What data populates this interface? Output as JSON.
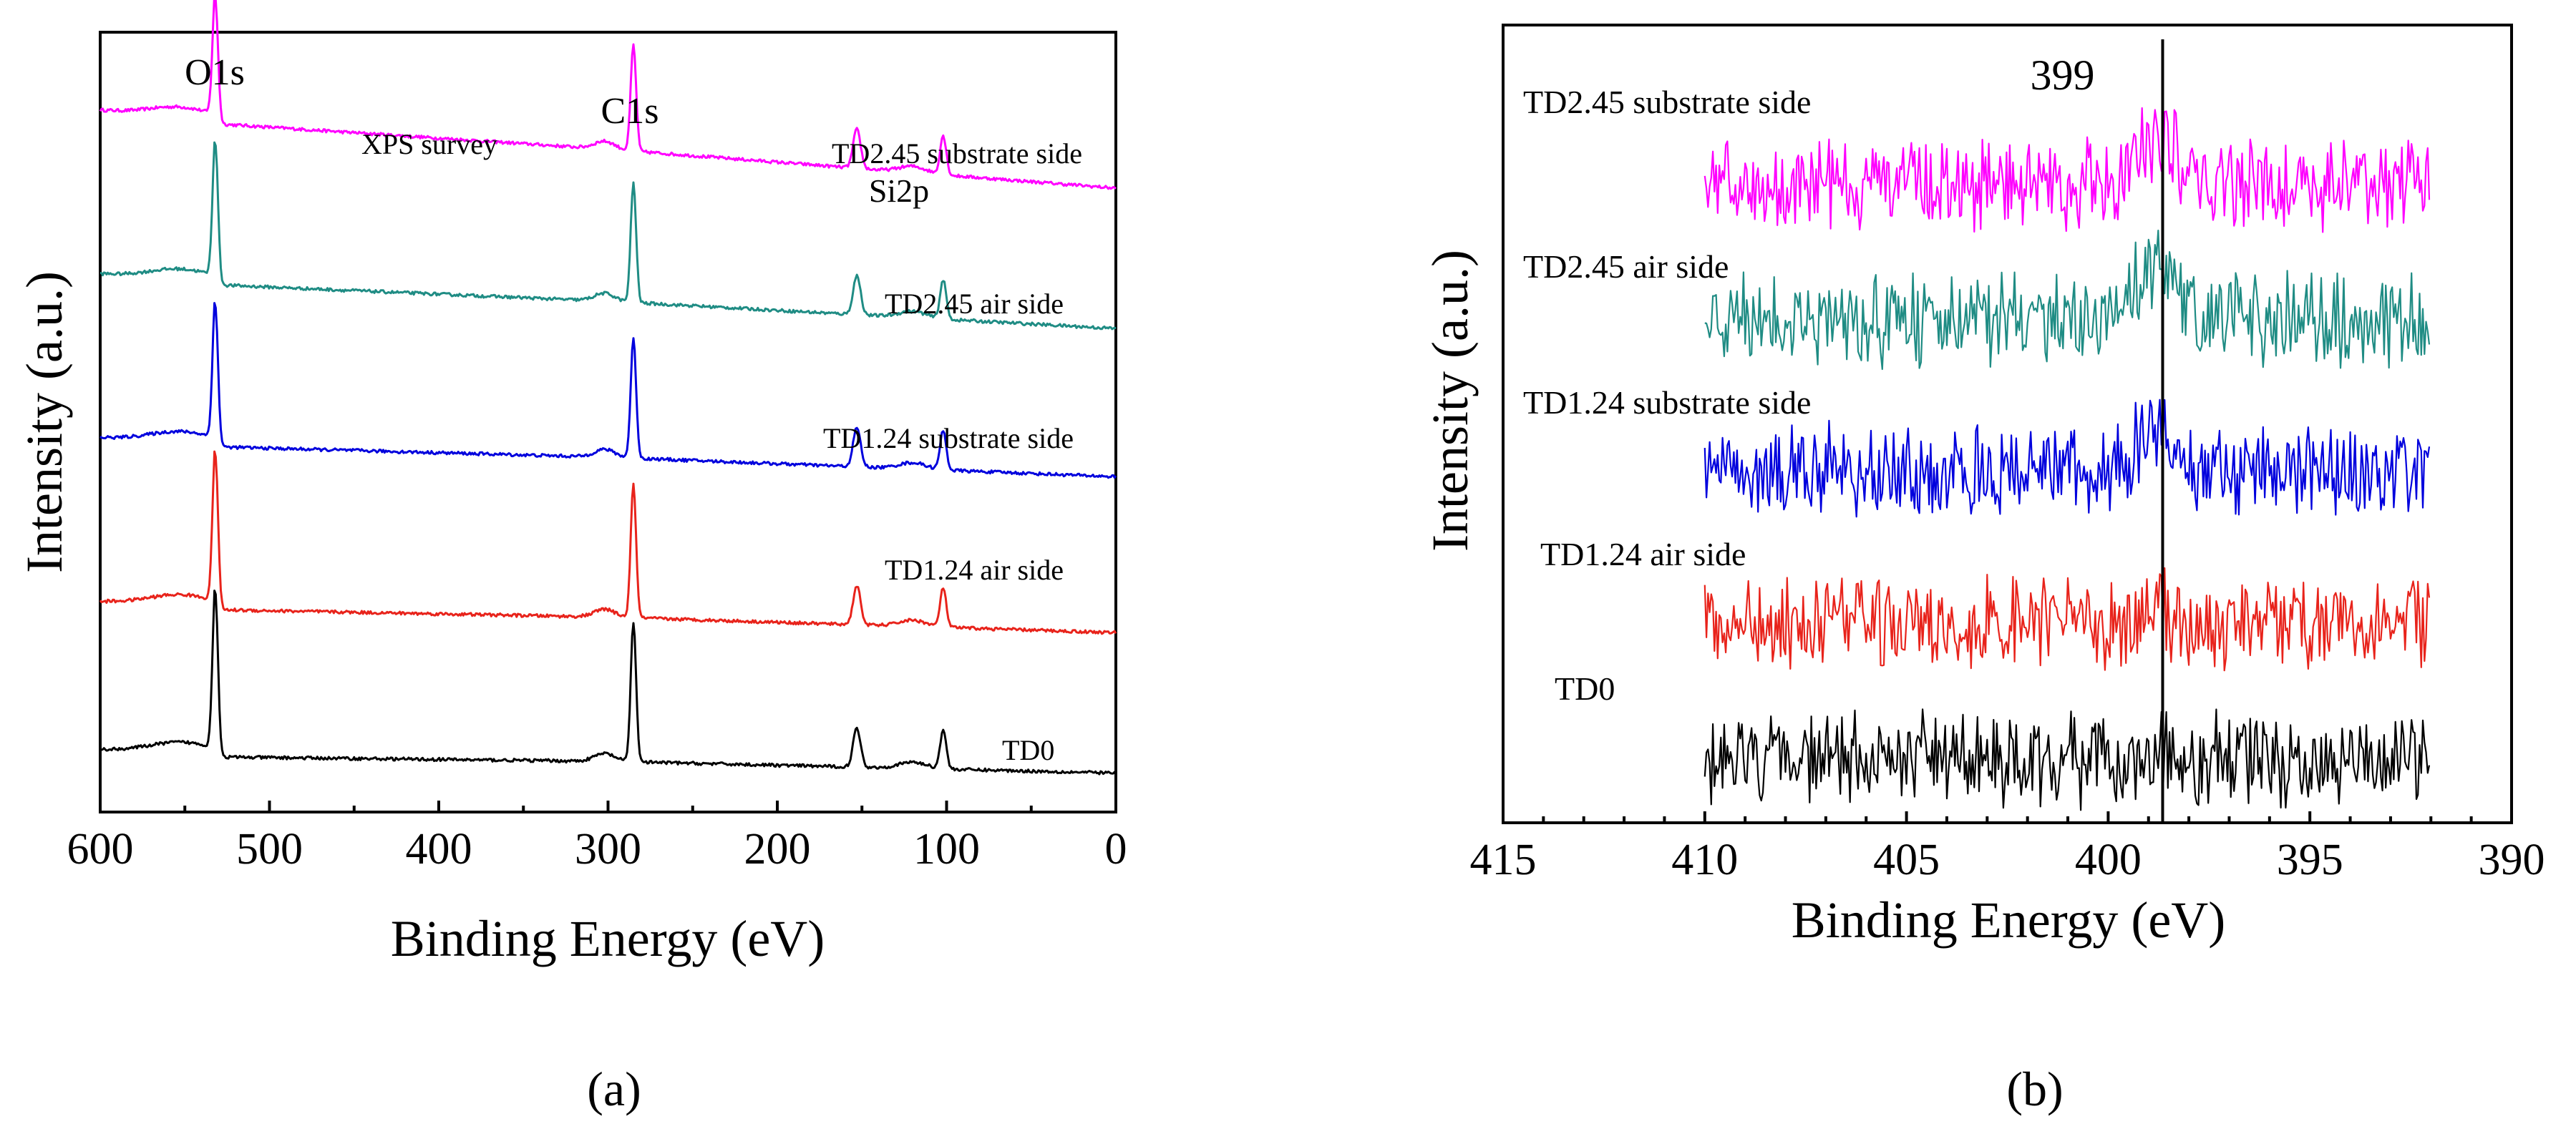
{
  "chart_data": [
    {
      "type": "line",
      "panel": "a",
      "panel_label": "(a)",
      "xlabel": "Binding Energy (eV)",
      "ylabel": "Intensity (a.u.)",
      "xlim": [
        600,
        0
      ],
      "x_ticks": [
        "600",
        "500",
        "400",
        "300",
        "200",
        "100",
        "0"
      ],
      "annotations": [
        "O1s",
        "C1s",
        "Si2p",
        "XPS survey"
      ],
      "peaks_eV": {
        "O1s": 532,
        "C1s": 285,
        "Si2p_shoulder": 153,
        "Si2p": 102
      },
      "series": [
        {
          "name": "TD2.45 substrate side",
          "color": "#ff00ff",
          "baseline_high": 0.9,
          "baseline_low": 0.8
        },
        {
          "name": "TD2.45  air side",
          "color": "#1f8c84",
          "baseline_high": 0.69,
          "baseline_low": 0.62
        },
        {
          "name": "TD1.24 substrate side",
          "color": "#0000dd",
          "baseline_high": 0.48,
          "baseline_low": 0.43
        },
        {
          "name": "TD1.24 air side",
          "color": "#e8231b",
          "baseline_high": 0.27,
          "baseline_low": 0.23
        },
        {
          "name": "TD0",
          "color": "#000000",
          "baseline_high": 0.08,
          "baseline_low": 0.05
        }
      ]
    },
    {
      "type": "line",
      "panel": "b",
      "panel_label": "(b)",
      "xlabel": "Binding Energy (eV)",
      "ylabel": "Intensity (a.u.)",
      "xlim": [
        415,
        390
      ],
      "data_range": [
        410,
        392
      ],
      "x_ticks": [
        "415",
        "410",
        "405",
        "400",
        "395",
        "390"
      ],
      "reference_line_eV": 399,
      "reference_label": "399",
      "series": [
        {
          "name": "TD2.45 substrate side",
          "color": "#ff00ff",
          "baseline": 0.8
        },
        {
          "name": "TD2.45 air side",
          "color": "#1f8c84",
          "baseline": 0.63
        },
        {
          "name": "TD1.24 substrate side",
          "color": "#0000dd",
          "baseline": 0.44
        },
        {
          "name": "TD1.24 air side",
          "color": "#e8231b",
          "baseline": 0.25
        },
        {
          "name": "TD0",
          "color": "#000000",
          "baseline": 0.08
        }
      ]
    }
  ]
}
